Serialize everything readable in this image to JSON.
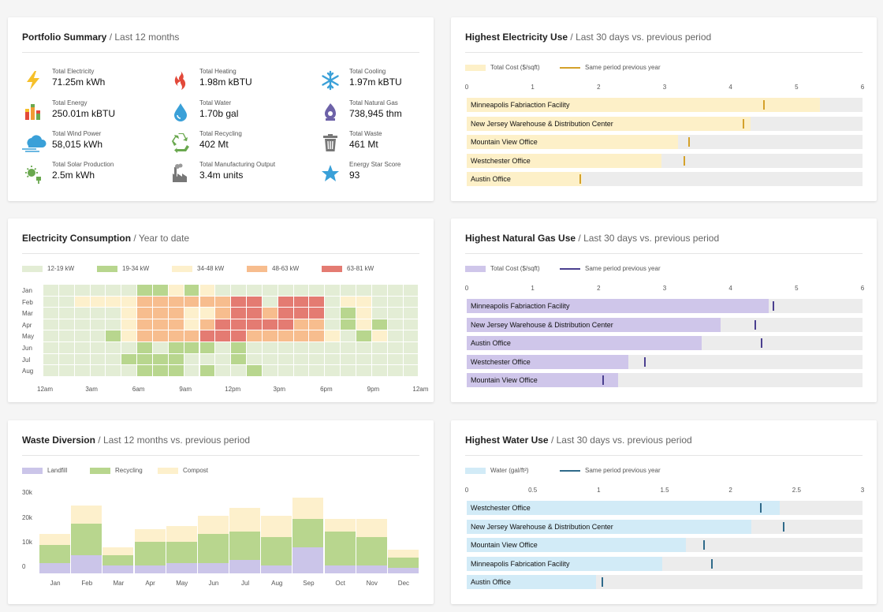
{
  "summary": {
    "title": "Portfolio Summary",
    "subtitle": "Last 12 months",
    "items": [
      {
        "icon": "lightning-icon",
        "label": "Total Electricity",
        "value": "71.25m kWh"
      },
      {
        "icon": "flame-icon",
        "label": "Total Heating",
        "value": "1.98m kBTU"
      },
      {
        "icon": "snowflake-icon",
        "label": "Total Cooling",
        "value": "1.97m kBTU"
      },
      {
        "icon": "energy-bars-icon",
        "label": "Total Energy",
        "value": "250.01m kBTU"
      },
      {
        "icon": "water-drop-icon",
        "label": "Total Water",
        "value": "1.70b gal"
      },
      {
        "icon": "gas-flame-icon",
        "label": "Total Natural Gas",
        "value": "738,945 thm"
      },
      {
        "icon": "wind-cloud-icon",
        "label": "Total Wind Power",
        "value": "58,015 kWh"
      },
      {
        "icon": "recycle-icon",
        "label": "Total Recycling",
        "value": "402 Mt"
      },
      {
        "icon": "trash-icon",
        "label": "Total Waste",
        "value": "461 Mt"
      },
      {
        "icon": "solar-plug-icon",
        "label": "Total Solar Production",
        "value": "2.5m kWh"
      },
      {
        "icon": "factory-icon",
        "label": "Total Manufacturing Output",
        "value": "3.4m units"
      },
      {
        "icon": "star-icon",
        "label": "Energy Star Score",
        "value": "93"
      }
    ]
  },
  "electricity_use": {
    "title": "Highest Electricity Use",
    "subtitle": "Last 30 days vs. previous period",
    "legend_fill": "Total Cost ($/sqft)",
    "legend_line": "Same period previous year",
    "fill_color": "#fdf0c8",
    "mark_color": "#d4a12a",
    "axis_max": 6,
    "ticks": [
      "0",
      "1",
      "2",
      "3",
      "4",
      "5",
      "6"
    ],
    "rows": [
      {
        "label": "Minneapolis Fabriaction Facility",
        "value": 5.35,
        "previous": 4.5
      },
      {
        "label": "New Jersey Warehouse & Distribution Center",
        "value": 4.3,
        "previous": 4.2
      },
      {
        "label": "Mountain View Office",
        "value": 3.2,
        "previous": 3.37
      },
      {
        "label": "Westchester Office",
        "value": 2.95,
        "previous": 3.3
      },
      {
        "label": "Austin Office",
        "value": 1.75,
        "previous": 1.72
      }
    ]
  },
  "gas_use": {
    "title": "Highest Natural Gas Use",
    "subtitle": "Last 30 days vs. previous period",
    "legend_fill": "Total Cost ($/sqft)",
    "legend_line": "Same period previous year",
    "fill_color": "#cfc6ea",
    "mark_color": "#4a3f8f",
    "axis_max": 6,
    "ticks": [
      "0",
      "1",
      "2",
      "3",
      "4",
      "5",
      "6"
    ],
    "rows": [
      {
        "label": "Minneapolis Fabriaction Facility",
        "value": 4.58,
        "previous": 4.65
      },
      {
        "label": "New Jersey Warehouse & Distribution Center",
        "value": 3.85,
        "previous": 4.38
      },
      {
        "label": "Austin Office",
        "value": 3.56,
        "previous": 4.47
      },
      {
        "label": "Westchester Office",
        "value": 2.45,
        "previous": 2.7
      },
      {
        "label": "Mountain View Office",
        "value": 2.3,
        "previous": 2.07
      }
    ]
  },
  "water_use": {
    "title": "Highest Water Use",
    "subtitle": "Last 30 days vs. previous period",
    "legend_fill": "Water (gal/ft²)",
    "legend_line": "Same period previous year",
    "fill_color": "#d2ebf7",
    "mark_color": "#2f6a8a",
    "axis_max": 3,
    "ticks": [
      "0",
      "0.5",
      "1",
      "1.5",
      "2",
      "2.5",
      "3"
    ],
    "rows": [
      {
        "label": "Westchester Office",
        "value": 2.37,
        "previous": 2.23
      },
      {
        "label": "New Jersey Warehouse & Distribution Center",
        "value": 2.16,
        "previous": 2.4
      },
      {
        "label": "Mountain View Office",
        "value": 1.66,
        "previous": 1.8
      },
      {
        "label": "Minneapolis Fabrication Facility",
        "value": 1.48,
        "previous": 1.86
      },
      {
        "label": "Austin Office",
        "value": 0.98,
        "previous": 1.03
      }
    ]
  },
  "consumption": {
    "title": "Electricity Consumption",
    "subtitle": "Year to date",
    "legend": [
      {
        "label": "12-19 kW",
        "color": "#e3edd5"
      },
      {
        "label": "19-34 kW",
        "color": "#b8d68e"
      },
      {
        "label": "34-48 kW",
        "color": "#fdf0cc"
      },
      {
        "label": "48-63 kW",
        "color": "#f7bd8e"
      },
      {
        "label": "63-81 kW",
        "color": "#e47b72"
      }
    ],
    "months": [
      "Jan",
      "Feb",
      "Mar",
      "Apr",
      "May",
      "Jun",
      "Jul",
      "Aug"
    ],
    "hours": [
      "12am",
      "3am",
      "6am",
      "9am",
      "12pm",
      "3pm",
      "6pm",
      "9pm",
      "12am"
    ],
    "grid": [
      "000000112120000000000000",
      "002222333333440444022000",
      "000002333223443444012000",
      "000002333234444433012100",
      "000012333344433333201200",
      "000000101110100000000000",
      "000001111000100000000000",
      "000000111010010000000000"
    ]
  },
  "waste": {
    "title": "Waste Diversion",
    "subtitle": "Last 12 months vs. previous period",
    "legend": [
      {
        "label": "Landfill",
        "color": "#cbc5e9"
      },
      {
        "label": "Recycling",
        "color": "#b8d68e"
      },
      {
        "label": "Compost",
        "color": "#fdf0cc"
      }
    ],
    "chart_data": {
      "type": "bar",
      "stacked": true,
      "categories": [
        "Jan",
        "Feb",
        "Mar",
        "Apr",
        "May",
        "Jun",
        "Jul",
        "Aug",
        "Sep",
        "Oct",
        "Nov",
        "Dec"
      ],
      "series": [
        {
          "name": "Landfill",
          "values": [
            4000,
            7000,
            3000,
            3000,
            4000,
            4000,
            5000,
            3000,
            10000,
            3000,
            3000,
            2000
          ]
        },
        {
          "name": "Recycling",
          "values": [
            7000,
            12000,
            4000,
            9000,
            8000,
            11000,
            11000,
            11000,
            11000,
            13000,
            11000,
            4000
          ]
        },
        {
          "name": "Compost",
          "values": [
            4000,
            7000,
            3000,
            5000,
            6000,
            7000,
            9000,
            8000,
            8000,
            5000,
            7000,
            3000
          ]
        }
      ],
      "ylim": [
        0,
        40000
      ],
      "yticks": [
        "30k",
        "20k",
        "10k",
        "0"
      ]
    }
  }
}
